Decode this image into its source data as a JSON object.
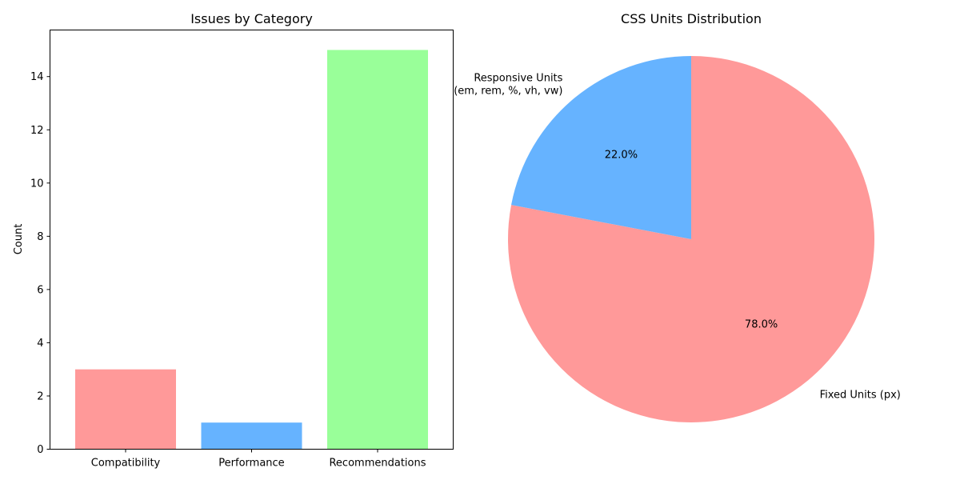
{
  "chart_data": [
    {
      "type": "bar",
      "title": "Issues by Category",
      "xlabel": "",
      "ylabel": "Count",
      "categories": [
        "Compatibility",
        "Performance",
        "Recommendations"
      ],
      "values": [
        3,
        1,
        15
      ],
      "colors": [
        "#ff9999",
        "#66b3ff",
        "#99ff99"
      ],
      "ylim": [
        0,
        15.75
      ],
      "yticks": [
        0,
        2,
        4,
        6,
        8,
        10,
        12,
        14
      ],
      "grid": false,
      "legend": "none"
    },
    {
      "type": "pie",
      "title": "CSS Units Distribution",
      "slices": [
        {
          "label": "Fixed Units (px)",
          "value": 78.0,
          "pct_label": "78.0%",
          "color": "#ff9999"
        },
        {
          "label": "Responsive Units\n(em, rem, %, vh, vw)",
          "value": 22.0,
          "pct_label": "22.0%",
          "color": "#66b3ff"
        }
      ],
      "start_angle_deg": 90,
      "direction": "clockwise",
      "legend": "none"
    }
  ]
}
